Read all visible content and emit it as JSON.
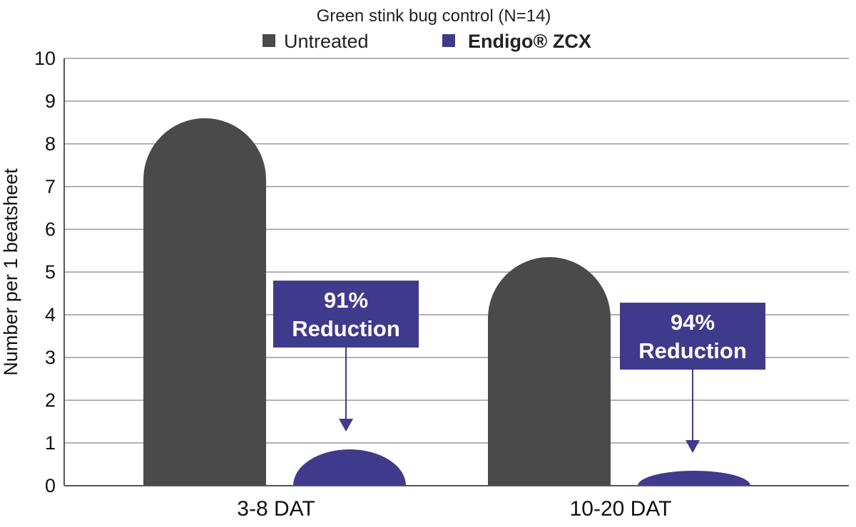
{
  "chart_data": {
    "type": "bar",
    "title": "Green stink bug control (N=14)",
    "ylabel": "Number per 1 beatsheet",
    "xlabel": "",
    "ylim": [
      0,
      10
    ],
    "yticks": [
      0,
      1,
      2,
      3,
      4,
      5,
      6,
      7,
      8,
      9,
      10
    ],
    "categories": [
      "3-8 DAT",
      "10-20 DAT"
    ],
    "series": [
      {
        "name": "Untreated",
        "color": "#4a4a4a",
        "values": [
          8.6,
          5.35
        ]
      },
      {
        "name": "Endigo",
        "name_suffix": "® ZCX",
        "color": "#403a8c",
        "values": [
          0.85,
          0.35
        ]
      }
    ],
    "annotations": [
      {
        "category": "3-8 DAT",
        "line1": "91%",
        "line2": "Reduction"
      },
      {
        "category": "10-20 DAT",
        "line1": "94%",
        "line2": "Reduction"
      }
    ],
    "grid": true,
    "legend": "top-center"
  }
}
